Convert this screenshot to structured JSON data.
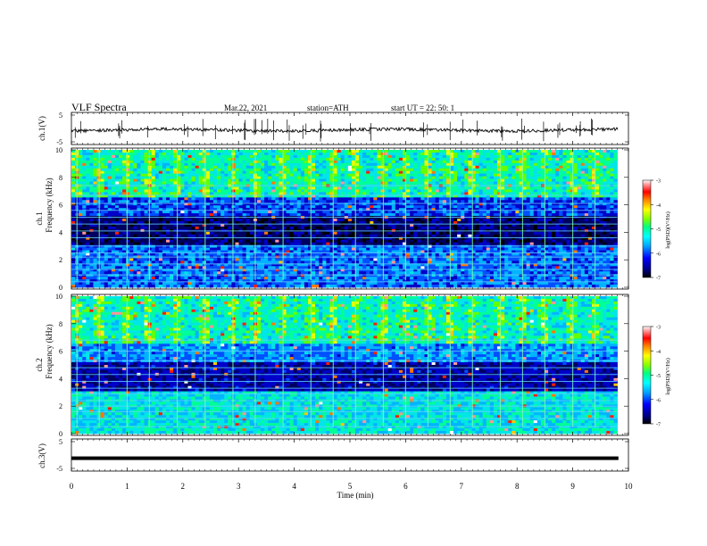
{
  "header": {
    "title": "VLF  Spectra",
    "date": "Mar.22, 2021",
    "station": "station=ATH",
    "start": "start  UT  =    22: 50: 1"
  },
  "chart_data": [
    {
      "type": "line",
      "name": "ch1-waveform",
      "ylabel": "ch.1(V)",
      "ylim": [
        -5,
        5
      ],
      "ytick_labels": [
        "5",
        "-5"
      ],
      "xlim": [
        0,
        10
      ],
      "baseline": -0.5
    },
    {
      "type": "heatmap",
      "name": "ch1-spectrogram",
      "ylabel_top": "ch.1",
      "ylabel": "Frequency  (kHz)",
      "ylim": [
        0,
        10
      ],
      "ytick_labels": [
        "0",
        "2",
        "4",
        "6",
        "8",
        "10"
      ],
      "xlim": [
        0,
        9.8
      ],
      "colorbar": {
        "label": "log(PSD)(V²/Hz)",
        "ticks": [
          "-3",
          "-4",
          "-5",
          "-6",
          "-7"
        ],
        "range": [
          -7,
          -3
        ]
      },
      "horizontal_bands_khz": [
        0.4,
        0.9,
        1.3,
        1.7,
        2.2,
        2.5,
        3.0,
        3.6,
        4.1,
        4.6,
        5.1,
        5.6,
        6.1,
        6.7,
        7.4
      ],
      "burst_times_min": [
        0.1,
        0.5,
        1.0,
        1.4,
        1.9,
        2.4,
        2.9,
        3.3,
        3.8,
        4.3,
        4.7,
        5.1,
        5.6,
        6.0,
        6.4,
        6.8,
        7.2,
        7.7,
        8.1,
        8.5,
        9.0,
        9.4
      ]
    },
    {
      "type": "heatmap",
      "name": "ch2-spectrogram",
      "ylabel_top": "ch.2",
      "ylabel": "Frequency  (kHz)",
      "ylim": [
        0,
        10
      ],
      "ytick_labels": [
        "0",
        "2",
        "4",
        "6",
        "8",
        "10"
      ],
      "xlim": [
        0,
        9.8
      ],
      "colorbar": {
        "label": "log(PSD)(V²/Hz)",
        "ticks": [
          "-3",
          "-4",
          "-5",
          "-6",
          "-7"
        ],
        "range": [
          -7,
          -3
        ]
      },
      "horizontal_bands_khz": [
        0.5,
        1.1,
        1.6,
        2.0,
        2.4,
        2.9,
        3.3,
        3.8,
        4.3,
        4.8,
        5.3,
        6.0,
        6.8
      ],
      "burst_times_min": [
        0.1,
        0.5,
        1.0,
        1.4,
        1.9,
        2.4,
        2.9,
        3.3,
        3.8,
        4.3,
        4.7,
        5.1,
        5.6,
        6.0,
        6.4,
        6.8,
        7.2,
        7.7,
        8.1,
        8.5,
        9.0,
        9.4
      ]
    },
    {
      "type": "line",
      "name": "ch3-waveform",
      "ylabel": "ch.3(V)",
      "ylim": [
        -5,
        5
      ],
      "ytick_labels": [
        "5",
        "-5"
      ],
      "xlim": [
        0,
        10
      ],
      "baseline": -1.0
    }
  ],
  "xaxis": {
    "label": "Time  (min)",
    "ticks": [
      "0",
      "1",
      "2",
      "3",
      "4",
      "5",
      "6",
      "7",
      "8",
      "9",
      "10"
    ]
  },
  "colormap": [
    "#000000",
    "#000060",
    "#0000c8",
    "#0050ff",
    "#00b4ff",
    "#00e6e6",
    "#00ff96",
    "#64ff00",
    "#e6ff00",
    "#ffc800",
    "#ff7800",
    "#ff1e00",
    "#ff9696",
    "#ffffff"
  ]
}
